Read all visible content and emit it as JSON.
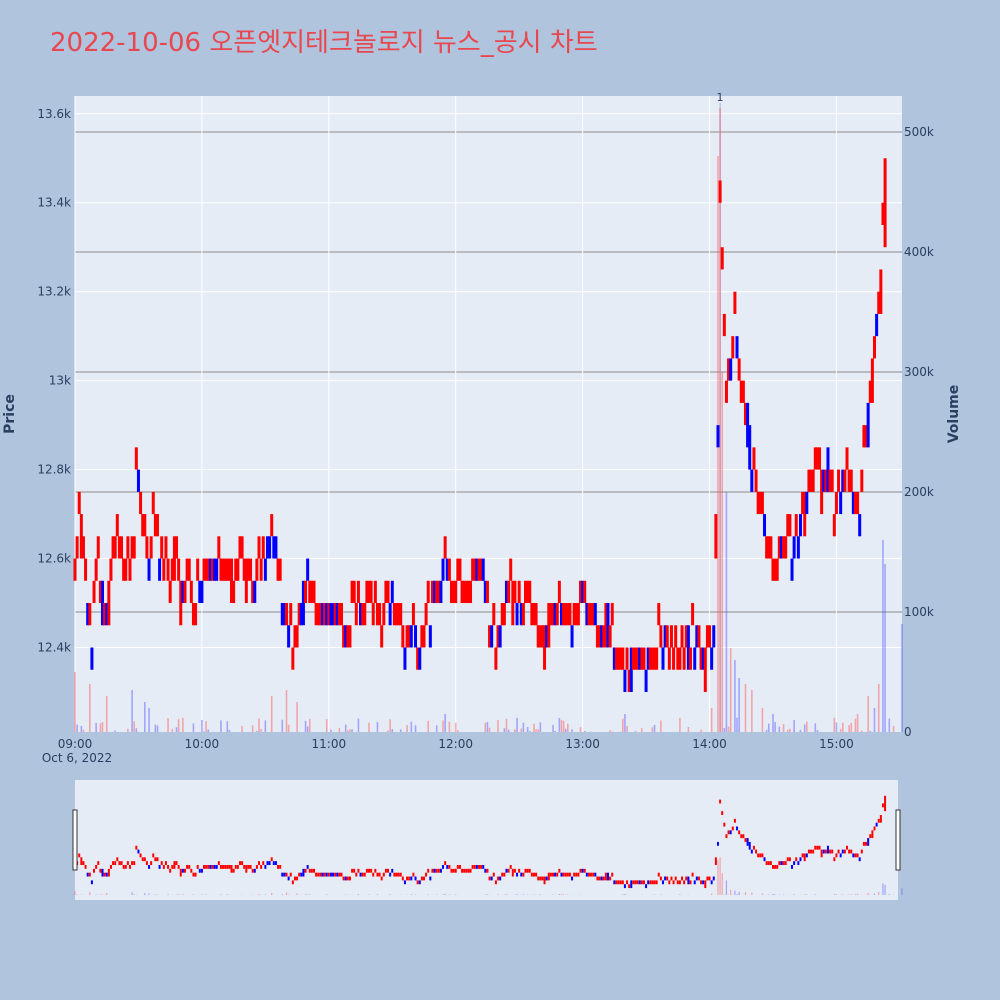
{
  "title": "2022-10-06 오픈엣지테크놀로지 뉴스_공시 차트",
  "colors": {
    "up": "#ff0000",
    "down": "#0000ff",
    "background": "#b0c4de",
    "plot_bg": "#e5ecf6",
    "title": "#e8474f"
  },
  "chart_data": {
    "type": "candlestick",
    "title": "2022-10-06 오픈엣지테크놀로지 뉴스_공시 차트",
    "ylabel": "Price",
    "y2label": "Volume",
    "ylim": [
      12210,
      13640
    ],
    "y2lim": [
      0,
      530000
    ],
    "price_ticks": [
      "12.4k",
      "12.6k",
      "12.8k",
      "13k",
      "13.2k",
      "13.4k",
      "13.6k"
    ],
    "price_tick_values": [
      12400,
      12600,
      12800,
      13000,
      13200,
      13400,
      13600
    ],
    "volume_ticks": [
      "0",
      "100k",
      "200k",
      "300k",
      "400k",
      "500k"
    ],
    "volume_tick_values": [
      0,
      100000,
      200000,
      300000,
      400000,
      500000
    ],
    "x_ticks": [
      "09:00",
      "10:00",
      "11:00",
      "12:00",
      "13:00",
      "14:00",
      "15:00"
    ],
    "x_tick_values": [
      "09:00",
      "10:00",
      "11:00",
      "12:00",
      "13:00",
      "14:00",
      "15:00"
    ],
    "x_sub_label": "Oct 6, 2022",
    "xlim": [
      "09:00",
      "15:31"
    ],
    "annotation": {
      "text": "1",
      "x": "14:05"
    },
    "rangeslider": true,
    "price_path": [
      [
        "09:00",
        12550
      ],
      [
        "09:02",
        12700
      ],
      [
        "09:04",
        12600
      ],
      [
        "09:06",
        12500
      ],
      [
        "09:08",
        12400
      ],
      [
        "09:10",
        12600
      ],
      [
        "09:12",
        12520
      ],
      [
        "09:14",
        12450
      ],
      [
        "09:16",
        12500
      ],
      [
        "09:18",
        12600
      ],
      [
        "09:20",
        12650
      ],
      [
        "09:22",
        12600
      ],
      [
        "09:24",
        12550
      ],
      [
        "09:26",
        12600
      ],
      [
        "09:28",
        12650
      ],
      [
        "09:29",
        12800
      ],
      [
        "09:31",
        12700
      ],
      [
        "09:33",
        12650
      ],
      [
        "09:35",
        12600
      ],
      [
        "09:37",
        12650
      ],
      [
        "09:40",
        12600
      ],
      [
        "09:43",
        12600
      ],
      [
        "09:45",
        12550
      ],
      [
        "09:48",
        12600
      ],
      [
        "09:50",
        12500
      ],
      [
        "09:53",
        12550
      ],
      [
        "09:56",
        12500
      ],
      [
        "10:00",
        12550
      ],
      [
        "10:02",
        12600
      ],
      [
        "10:05",
        12580
      ],
      [
        "10:08",
        12600
      ],
      [
        "10:12",
        12550
      ],
      [
        "10:15",
        12550
      ],
      [
        "10:18",
        12600
      ],
      [
        "10:21",
        12550
      ],
      [
        "10:24",
        12500
      ],
      [
        "10:27",
        12550
      ],
      [
        "10:30",
        12600
      ],
      [
        "10:33",
        12650
      ],
      [
        "10:35",
        12600
      ],
      [
        "10:38",
        12500
      ],
      [
        "10:40",
        12500
      ],
      [
        "10:43",
        12400
      ],
      [
        "10:46",
        12450
      ],
      [
        "10:50",
        12550
      ],
      [
        "10:53",
        12500
      ],
      [
        "10:56",
        12450
      ],
      [
        "11:00",
        12500
      ],
      [
        "11:05",
        12450
      ],
      [
        "11:08",
        12400
      ],
      [
        "11:12",
        12500
      ],
      [
        "11:15",
        12450
      ],
      [
        "11:20",
        12500
      ],
      [
        "11:25",
        12450
      ],
      [
        "11:30",
        12500
      ],
      [
        "11:33",
        12450
      ],
      [
        "11:36",
        12400
      ],
      [
        "11:40",
        12450
      ],
      [
        "11:43",
        12400
      ],
      [
        "11:47",
        12450
      ],
      [
        "11:50",
        12500
      ],
      [
        "11:53",
        12550
      ],
      [
        "11:55",
        12600
      ],
      [
        "11:57",
        12550
      ],
      [
        "12:00",
        12550
      ],
      [
        "12:05",
        12550
      ],
      [
        "12:10",
        12550
      ],
      [
        "12:13",
        12550
      ],
      [
        "12:16",
        12450
      ],
      [
        "12:19",
        12400
      ],
      [
        "12:22",
        12450
      ],
      [
        "12:25",
        12550
      ],
      [
        "12:28",
        12500
      ],
      [
        "12:31",
        12450
      ],
      [
        "12:35",
        12500
      ],
      [
        "12:38",
        12450
      ],
      [
        "12:41",
        12400
      ],
      [
        "12:45",
        12450
      ],
      [
        "12:50",
        12500
      ],
      [
        "12:55",
        12450
      ],
      [
        "13:00",
        12500
      ],
      [
        "13:05",
        12450
      ],
      [
        "13:08",
        12400
      ],
      [
        "13:12",
        12450
      ],
      [
        "13:15",
        12400
      ],
      [
        "13:18",
        12350
      ],
      [
        "13:20",
        12300
      ],
      [
        "13:23",
        12350
      ],
      [
        "13:27",
        12400
      ],
      [
        "13:30",
        12350
      ],
      [
        "13:35",
        12400
      ],
      [
        "13:40",
        12400
      ],
      [
        "13:45",
        12350
      ],
      [
        "13:50",
        12400
      ],
      [
        "13:55",
        12400
      ],
      [
        "13:58",
        12350
      ],
      [
        "14:01",
        12400
      ],
      [
        "14:02",
        12450
      ],
      [
        "14:03",
        12650
      ],
      [
        "14:04",
        12900
      ],
      [
        "14:05",
        13450
      ],
      [
        "14:06",
        13300
      ],
      [
        "14:07",
        13100
      ],
      [
        "14:08",
        12950
      ],
      [
        "14:10",
        13050
      ],
      [
        "14:12",
        13150
      ],
      [
        "14:14",
        13000
      ],
      [
        "14:16",
        12950
      ],
      [
        "14:18",
        12900
      ],
      [
        "14:20",
        12800
      ],
      [
        "14:22",
        12750
      ],
      [
        "14:24",
        12700
      ],
      [
        "14:26",
        12650
      ],
      [
        "14:28",
        12600
      ],
      [
        "14:30",
        12550
      ],
      [
        "14:33",
        12600
      ],
      [
        "14:36",
        12650
      ],
      [
        "14:39",
        12600
      ],
      [
        "14:42",
        12650
      ],
      [
        "14:45",
        12700
      ],
      [
        "14:48",
        12750
      ],
      [
        "14:50",
        12800
      ],
      [
        "14:53",
        12750
      ],
      [
        "14:56",
        12800
      ],
      [
        "14:59",
        12700
      ],
      [
        "15:02",
        12750
      ],
      [
        "15:05",
        12800
      ],
      [
        "15:07",
        12750
      ],
      [
        "15:09",
        12750
      ],
      [
        "15:11",
        12700
      ],
      [
        "15:13",
        12850
      ],
      [
        "15:15",
        12900
      ],
      [
        "15:17",
        13000
      ],
      [
        "15:19",
        13100
      ],
      [
        "15:21",
        13200
      ],
      [
        "15:22",
        13350
      ],
      [
        "15:23",
        13500
      ]
    ],
    "volume_peaks": [
      [
        "09:00",
        50000
      ],
      [
        "09:07",
        40000
      ],
      [
        "09:15",
        30000
      ],
      [
        "09:27",
        35000
      ],
      [
        "09:33",
        25000
      ],
      [
        "09:35",
        20000
      ],
      [
        "10:00",
        10000
      ],
      [
        "10:33",
        30000
      ],
      [
        "10:40",
        35000
      ],
      [
        "10:45",
        25000
      ],
      [
        "11:55",
        15000
      ],
      [
        "12:40",
        8000
      ],
      [
        "13:20",
        15000
      ],
      [
        "14:01",
        20000
      ],
      [
        "14:04",
        480000
      ],
      [
        "14:05",
        520000
      ],
      [
        "14:06",
        300000
      ],
      [
        "14:08",
        200000
      ],
      [
        "14:10",
        70000
      ],
      [
        "14:12",
        60000
      ],
      [
        "14:14",
        45000
      ],
      [
        "14:17",
        40000
      ],
      [
        "14:20",
        35000
      ],
      [
        "14:25",
        20000
      ],
      [
        "14:30",
        15000
      ],
      [
        "14:40",
        10000
      ],
      [
        "15:00",
        8000
      ],
      [
        "15:10",
        15000
      ],
      [
        "15:15",
        30000
      ],
      [
        "15:18",
        20000
      ],
      [
        "15:20",
        40000
      ],
      [
        "15:22",
        160000
      ],
      [
        "15:23",
        140000
      ],
      [
        "15:31",
        90000
      ]
    ]
  }
}
